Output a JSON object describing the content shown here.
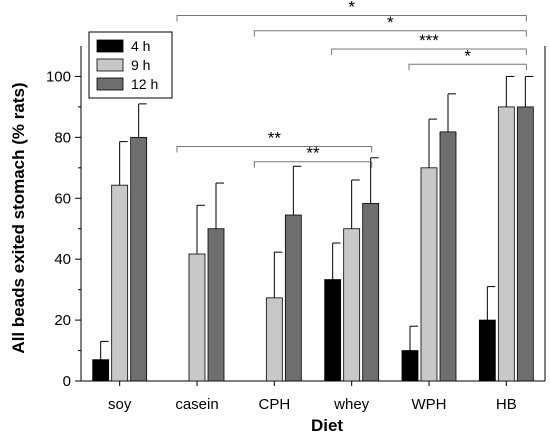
{
  "chart_data": {
    "type": "bar",
    "xlabel": "Diet",
    "ylabel": "All beads exited stomach (% rats)",
    "ylim": [
      0,
      110
    ],
    "yticks": [
      0,
      20,
      40,
      60,
      80,
      100
    ],
    "grid": false,
    "legend_position": "top-left",
    "categories": [
      "soy",
      "casein",
      "CPH",
      "whey",
      "WPH",
      "HB"
    ],
    "series": [
      {
        "name": "4 h",
        "color": "#000000",
        "values": [
          7,
          0,
          0,
          33.3,
          10,
          20
        ],
        "errors": [
          6,
          0,
          0,
          12,
          8,
          11
        ]
      },
      {
        "name": "9 h",
        "color": "#c8c8c8",
        "values": [
          64.3,
          41.7,
          27.3,
          50,
          70,
          90
        ],
        "errors": [
          14.3,
          16,
          15,
          16,
          16,
          10
        ]
      },
      {
        "name": "12 h",
        "color": "#6e6e6e",
        "values": [
          80,
          50,
          54.5,
          58.3,
          81.8,
          90
        ],
        "errors": [
          11,
          15,
          16,
          15,
          12.5,
          10
        ]
      }
    ],
    "annotations": [
      {
        "label": "*",
        "from": "casein",
        "to": "HB",
        "level": 120
      },
      {
        "label": "*",
        "from": "CPH",
        "to": "HB",
        "level": 115
      },
      {
        "label": "***",
        "from": "whey",
        "to": "HB",
        "level": 109
      },
      {
        "label": "*",
        "from": "WPH",
        "to": "HB",
        "level": 104
      },
      {
        "label": "**",
        "from": "casein",
        "to": "whey",
        "level": 77
      },
      {
        "label": "**",
        "from": "CPH",
        "to": "whey",
        "level": 72
      }
    ]
  }
}
